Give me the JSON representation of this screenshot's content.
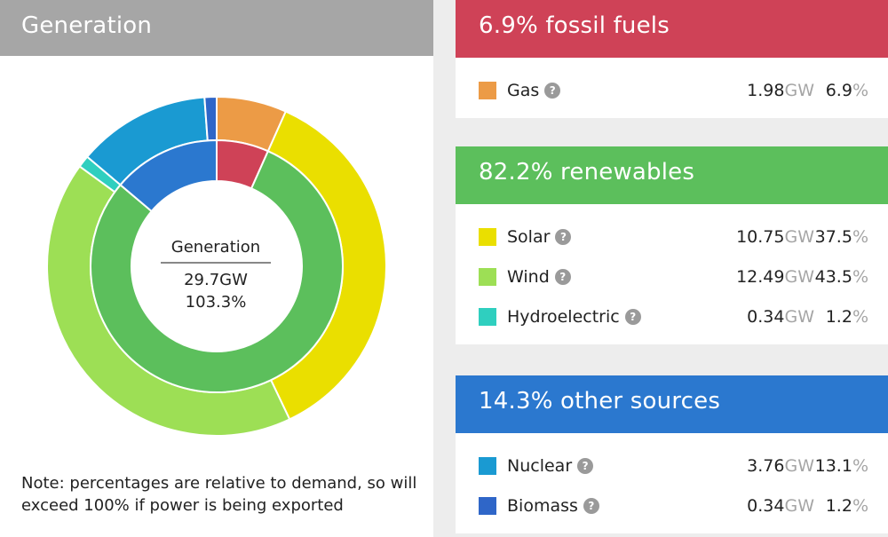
{
  "left_panel": {
    "title": "Generation",
    "center_label": "Generation",
    "center_value": "29.7GW",
    "center_pct": "103.3%",
    "note": "Note: percentages are relative to demand, so will exceed 100% if power is being exported"
  },
  "colors": {
    "header_grey": "#a6a6a6",
    "fossil": "#cf4257",
    "renewables": "#5cbf5c",
    "other": "#2b78cf",
    "gas": "#ec9b46",
    "solar": "#eadf00",
    "wind": "#9ddf55",
    "hydro": "#2fcfbf",
    "nuclear": "#1a9ad2",
    "biomass": "#2f66c8"
  },
  "groups": [
    {
      "header": "6.9% fossil fuels",
      "items": [
        {
          "name": "Gas",
          "gw": "1.98",
          "pct": "6.9",
          "swatch": "gas"
        }
      ]
    },
    {
      "header": "82.2% renewables",
      "items": [
        {
          "name": "Solar",
          "gw": "10.75",
          "pct": "37.5",
          "swatch": "solar"
        },
        {
          "name": "Wind",
          "gw": "12.49",
          "pct": "43.5",
          "swatch": "wind"
        },
        {
          "name": "Hydroelectric",
          "gw": "0.34",
          "pct": "1.2",
          "swatch": "hydro"
        }
      ]
    },
    {
      "header": "14.3% other sources",
      "items": [
        {
          "name": "Nuclear",
          "gw": "3.76",
          "pct": "13.1",
          "swatch": "nuclear"
        },
        {
          "name": "Biomass",
          "gw": "0.34",
          "pct": "1.2",
          "swatch": "biomass"
        }
      ]
    }
  ],
  "units": {
    "gw": "GW",
    "pct": "%",
    "help": "?"
  },
  "chart_data": {
    "type": "pie",
    "title": "Generation",
    "total_gw": 29.7,
    "total_pct_of_demand": 103.3,
    "outer_ring": {
      "categories": [
        "Gas",
        "Solar",
        "Wind",
        "Hydroelectric",
        "Nuclear",
        "Biomass"
      ],
      "values_gw": [
        1.98,
        10.75,
        12.49,
        0.34,
        3.76,
        0.34
      ],
      "percent_of_demand": [
        6.9,
        37.5,
        43.5,
        1.2,
        13.1,
        1.2
      ]
    },
    "inner_ring": {
      "categories": [
        "fossil fuels",
        "renewables",
        "other sources"
      ],
      "percent_of_demand": [
        6.9,
        82.2,
        14.3
      ]
    }
  }
}
